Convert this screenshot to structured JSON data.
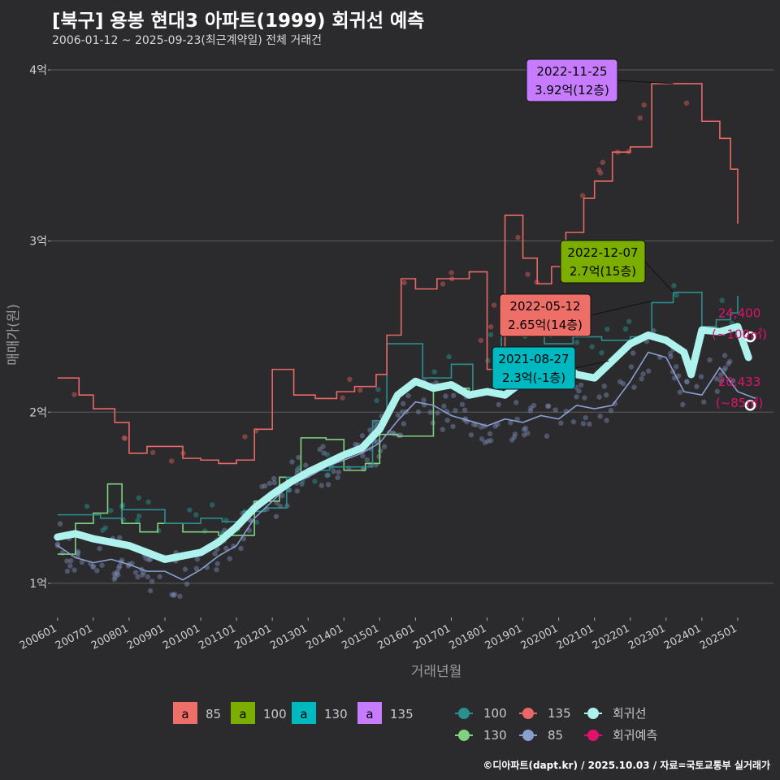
{
  "title": "[북구] 용봉 현대3 아파트(1999) 회귀선 예측",
  "subtitle": "2006-01-12 ~ 2025-09-23(최근계약일) 전체 거래건",
  "footer": "©디아파트(dapt.kr) / 2025.10.03 / 자료=국토교통부 실거래가",
  "colors": {
    "background": "#2b2b2d",
    "grid": "#5c5c5c",
    "s85": "#ee6e68",
    "s100": "#7cae00",
    "s130": "#00b8c0",
    "s135": "#c77cff",
    "line85": "#8a9fd0",
    "line100": "#2a8f8f",
    "line130": "#7fd27f",
    "line135": "#e96767",
    "regression": "#aef2ee",
    "forecast": "#e0126e"
  },
  "chart_data": {
    "type": "line",
    "xlabel": "거래년월",
    "ylabel": "매매가(원)",
    "xlim": [
      2005.8,
      2026.0
    ],
    "ylim": [
      0.8,
      4.1
    ],
    "x_ticks": [
      2006,
      2007,
      2008,
      2009,
      2010,
      2011,
      2012,
      2013,
      2014,
      2015,
      2016,
      2017,
      2018,
      2019,
      2020,
      2021,
      2022,
      2023,
      2024,
      2025
    ],
    "x_tick_labels": [
      "200601",
      "200701",
      "200801",
      "200901",
      "201001",
      "201101",
      "201201",
      "201301",
      "201401",
      "201501",
      "201601",
      "201701",
      "201801",
      "201901",
      "202001",
      "202101",
      "202201",
      "202301",
      "202401",
      "202501"
    ],
    "y_ticks": [
      1,
      2,
      3,
      4
    ],
    "y_tick_labels": [
      "1억",
      "2억",
      "3억",
      "4억"
    ],
    "series": [
      {
        "name": "85",
        "x": [
          2006.0,
          2006.5,
          2007.0,
          2007.5,
          2008.0,
          2008.5,
          2009.0,
          2009.5,
          2010.0,
          2010.5,
          2011.0,
          2011.5,
          2012.0,
          2012.5,
          2013.0,
          2013.5,
          2014.0,
          2014.5,
          2015.0,
          2015.5,
          2016.0,
          2016.5,
          2017.0,
          2017.5,
          2018.0,
          2018.5,
          2019.0,
          2019.5,
          2020.0,
          2020.5,
          2021.0,
          2021.5,
          2022.0,
          2022.5,
          2023.0,
          2023.5,
          2024.0,
          2024.5,
          2025.0,
          2025.5
        ],
        "values": [
          1.22,
          1.15,
          1.12,
          1.14,
          1.11,
          1.07,
          1.07,
          1.02,
          1.08,
          1.16,
          1.22,
          1.38,
          1.48,
          1.58,
          1.62,
          1.68,
          1.72,
          1.76,
          1.82,
          1.95,
          2.06,
          2.04,
          1.98,
          1.95,
          1.92,
          1.96,
          1.94,
          1.98,
          1.96,
          2.04,
          2.02,
          2.04,
          2.18,
          2.35,
          2.32,
          2.12,
          2.1,
          2.26,
          2.12,
          2.08
        ]
      },
      {
        "name": "100",
        "x": [
          2006.0,
          2006.6,
          2007.2,
          2007.8,
          2008.4,
          2009.0,
          2010.0,
          2010.6,
          2011.2,
          2011.8,
          2012.4,
          2013.0,
          2013.6,
          2014.2,
          2014.8,
          2015.2,
          2015.6,
          2016.2,
          2017.0,
          2017.6,
          2018.4,
          2019.0,
          2019.6,
          2020.4,
          2021.2,
          2022.0,
          2022.6,
          2023.2,
          2024.0,
          2024.4,
          2024.8,
          2025.0
        ],
        "values": [
          1.4,
          1.4,
          1.38,
          1.43,
          1.43,
          1.35,
          1.38,
          1.36,
          1.42,
          1.44,
          1.62,
          1.66,
          1.68,
          1.68,
          1.95,
          2.4,
          2.4,
          2.2,
          2.28,
          2.12,
          2.6,
          2.52,
          2.4,
          2.44,
          2.42,
          2.44,
          2.64,
          2.7,
          2.5,
          2.54,
          2.58,
          2.68
        ]
      },
      {
        "name": "130",
        "x": [
          2006.0,
          2006.5,
          2007.0,
          2007.4,
          2007.8,
          2008.3,
          2008.8,
          2009.5,
          2010.5,
          2011.5,
          2012.2,
          2012.8,
          2013.5,
          2014.0,
          2014.6,
          2015.0,
          2015.5,
          2016.5,
          2017.5,
          2018.0
        ],
        "values": [
          1.17,
          1.35,
          1.41,
          1.58,
          1.35,
          1.3,
          1.35,
          1.3,
          1.28,
          1.48,
          1.62,
          1.85,
          1.84,
          1.66,
          1.7,
          1.87,
          1.86,
          2.14,
          2.12,
          2.1
        ]
      },
      {
        "name": "135",
        "x": [
          2006.0,
          2006.6,
          2007.0,
          2007.6,
          2008.0,
          2008.5,
          2009.5,
          2010.0,
          2010.5,
          2011.0,
          2011.5,
          2012.0,
          2012.6,
          2013.2,
          2013.8,
          2014.3,
          2014.9,
          2015.2,
          2015.6,
          2016.0,
          2016.6,
          2017.5,
          2018.0,
          2018.5,
          2019.0,
          2019.4,
          2019.8,
          2020.2,
          2020.7,
          2021.0,
          2021.5,
          2022.0,
          2022.6,
          2023.2,
          2024.0,
          2024.5,
          2024.8,
          2025.0
        ],
        "values": [
          2.2,
          2.1,
          2.02,
          1.94,
          1.76,
          1.8,
          1.73,
          1.72,
          1.7,
          1.72,
          1.9,
          2.25,
          2.1,
          2.08,
          2.12,
          2.15,
          2.22,
          2.45,
          2.78,
          2.72,
          2.78,
          2.82,
          2.25,
          3.15,
          2.9,
          2.75,
          2.85,
          3.05,
          3.25,
          3.35,
          3.52,
          3.55,
          3.92,
          3.92,
          3.7,
          3.6,
          3.42,
          3.1
        ]
      },
      {
        "name": "회귀선",
        "x": [
          2006.0,
          2006.5,
          2007.0,
          2007.5,
          2008.0,
          2008.5,
          2009.0,
          2009.5,
          2010.0,
          2010.5,
          2011.0,
          2011.5,
          2012.0,
          2012.5,
          2013.0,
          2013.5,
          2014.0,
          2014.5,
          2015.0,
          2015.5,
          2016.0,
          2016.5,
          2017.0,
          2017.5,
          2018.0,
          2018.5,
          2019.0,
          2019.5,
          2020.0,
          2020.5,
          2021.0,
          2021.5,
          2022.0,
          2022.5,
          2023.0,
          2023.5,
          2023.7,
          2024.0,
          2024.5,
          2025.0,
          2025.3
        ],
        "values": [
          1.27,
          1.29,
          1.26,
          1.24,
          1.22,
          1.18,
          1.14,
          1.16,
          1.18,
          1.24,
          1.33,
          1.44,
          1.52,
          1.59,
          1.65,
          1.7,
          1.75,
          1.79,
          1.9,
          2.1,
          2.18,
          2.14,
          2.16,
          2.1,
          2.12,
          2.1,
          2.18,
          2.25,
          2.3,
          2.22,
          2.2,
          2.3,
          2.4,
          2.45,
          2.42,
          2.35,
          2.22,
          2.48,
          2.47,
          2.5,
          2.32
        ]
      }
    ],
    "forecast": [
      {
        "label": "24,400",
        "sub": "(~100㎡)",
        "x": 2025.35,
        "y": 2.44
      },
      {
        "label": "20,433",
        "sub": "(~85㎡)",
        "x": 2025.35,
        "y": 2.04
      }
    ],
    "annotations": [
      {
        "date": "2022-11-25",
        "text": "3.92억(12층)",
        "series": "135",
        "x": 2023.2,
        "y": 3.92
      },
      {
        "date": "2022-12-07",
        "text": "2.7억(15층)",
        "series": "100",
        "x": 2023.2,
        "y": 2.7
      },
      {
        "date": "2022-05-12",
        "text": "2.65억(14층)",
        "series": "85",
        "x": 2022.6,
        "y": 2.65
      },
      {
        "date": "2021-08-27",
        "text": "2.3억(-1층)",
        "series": "130",
        "x": 2021.4,
        "y": 2.3
      }
    ],
    "legend_boxes": [
      {
        "label": "85",
        "letter": "a",
        "color_key": "s85"
      },
      {
        "label": "100",
        "letter": "a",
        "color_key": "s100"
      },
      {
        "label": "130",
        "letter": "a",
        "color_key": "s130"
      },
      {
        "label": "135",
        "letter": "a",
        "color_key": "s135"
      }
    ],
    "legend_lines": [
      {
        "label": "100",
        "color_key": "line100"
      },
      {
        "label": "135",
        "color_key": "line135"
      },
      {
        "label": "회귀선",
        "color_key": "regression"
      },
      {
        "label": "130",
        "color_key": "line130"
      },
      {
        "label": "85",
        "color_key": "line85"
      },
      {
        "label": "회귀예측",
        "color_key": "forecast"
      }
    ]
  }
}
